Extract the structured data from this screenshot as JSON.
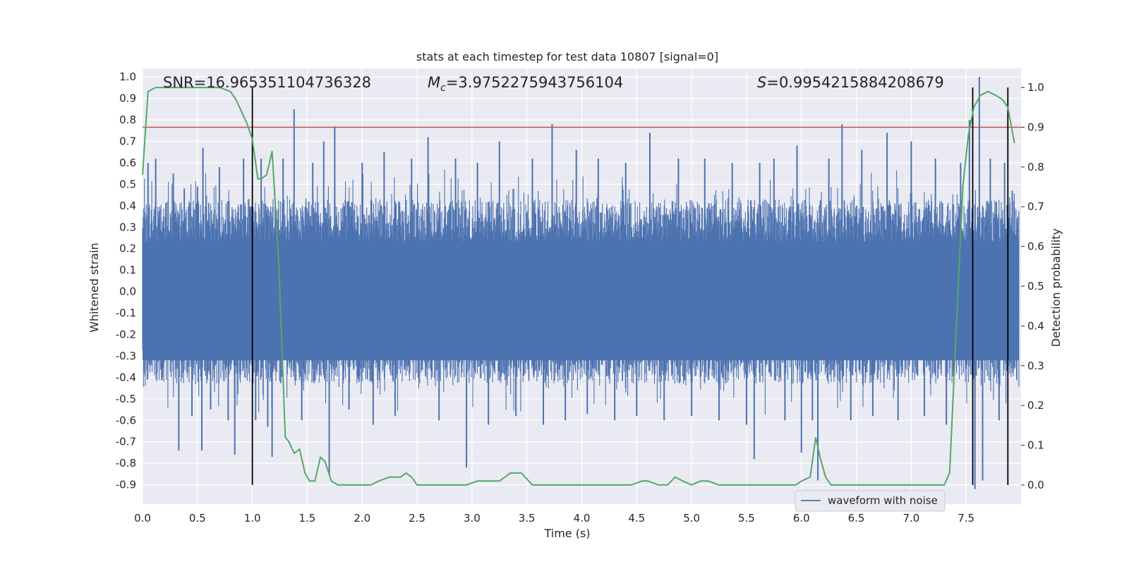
{
  "chart_data": {
    "type": "line",
    "title": "stats at each timestep for test data 10807 [signal=0]",
    "xlabel": "Time (s)",
    "ylabel": "Whitened strain",
    "y2label": "Detection probability",
    "xlim": [
      0.0,
      8.0
    ],
    "ylim": [
      -0.99,
      1.04
    ],
    "y2lim": [
      -0.048,
      1.048
    ],
    "xticks": [
      "0.0",
      "0.5",
      "1.0",
      "1.5",
      "2.0",
      "2.5",
      "3.0",
      "3.5",
      "4.0",
      "4.5",
      "5.0",
      "5.5",
      "6.0",
      "6.5",
      "7.0",
      "7.5"
    ],
    "yticks": [
      "1.0",
      "0.9",
      "0.8",
      "0.7",
      "0.6",
      "0.5",
      "0.4",
      "0.3",
      "0.2",
      "0.1",
      "0.0",
      "-0.1",
      "-0.2",
      "-0.3",
      "-0.4",
      "-0.5",
      "-0.6",
      "-0.7",
      "-0.8",
      "-0.9"
    ],
    "y2ticks": [
      "1.0",
      "0.9",
      "0.8",
      "0.7",
      "0.6",
      "0.5",
      "0.4",
      "0.3",
      "0.2",
      "0.1",
      "0.0"
    ],
    "grid": true,
    "legend_position": "lower-right",
    "annotations": {
      "snr": "SNR=16.965351104736328",
      "mc_symbol": "M",
      "mc_sub": "c",
      "mc_value": "=3.9752275943756104",
      "s_symbol": "S",
      "s_value": "=0.9954215884208679"
    },
    "threshold": {
      "y2": 0.9,
      "color": "#c44e52"
    },
    "vlines": [
      {
        "x": 1.0,
        "y2_from": 0.0,
        "y2_to": 1.0
      },
      {
        "x": 7.56,
        "y2_from": 0.0,
        "y2_to": 1.0
      },
      {
        "x": 7.88,
        "y2_from": 0.0,
        "y2_to": 1.0
      }
    ],
    "series": [
      {
        "name": "waveform with noise",
        "axis": "left",
        "color": "#4c72b0",
        "kind": "noise",
        "band_mean_amplitude": 0.33,
        "spikes": [
          {
            "x": 0.05,
            "y": 0.6
          },
          {
            "x": 0.12,
            "y": 0.62
          },
          {
            "x": 0.18,
            "y": -0.4
          },
          {
            "x": 0.28,
            "y": 0.55
          },
          {
            "x": 0.33,
            "y": -0.74
          },
          {
            "x": 0.38,
            "y": 0.48
          },
          {
            "x": 0.45,
            "y": -0.58
          },
          {
            "x": 0.5,
            "y": 0.49
          },
          {
            "x": 0.54,
            "y": -0.74
          },
          {
            "x": 0.55,
            "y": 0.67
          },
          {
            "x": 0.62,
            "y": -0.55
          },
          {
            "x": 0.7,
            "y": 0.58
          },
          {
            "x": 0.78,
            "y": -0.6
          },
          {
            "x": 0.84,
            "y": -0.76
          },
          {
            "x": 0.92,
            "y": 0.62
          },
          {
            "x": 1.03,
            "y": -0.6
          },
          {
            "x": 1.08,
            "y": 0.62
          },
          {
            "x": 1.14,
            "y": -0.63
          },
          {
            "x": 1.18,
            "y": -0.77
          },
          {
            "x": 1.28,
            "y": 0.62
          },
          {
            "x": 1.38,
            "y": 0.85
          },
          {
            "x": 1.45,
            "y": -0.6
          },
          {
            "x": 1.55,
            "y": 0.6
          },
          {
            "x": 1.65,
            "y": 0.7
          },
          {
            "x": 1.7,
            "y": -0.85
          },
          {
            "x": 1.75,
            "y": 0.77
          },
          {
            "x": 1.88,
            "y": -0.55
          },
          {
            "x": 2.0,
            "y": 0.6
          },
          {
            "x": 2.1,
            "y": -0.62
          },
          {
            "x": 2.2,
            "y": 0.65
          },
          {
            "x": 2.3,
            "y": -0.58
          },
          {
            "x": 2.45,
            "y": 0.62
          },
          {
            "x": 2.6,
            "y": 0.72
          },
          {
            "x": 2.7,
            "y": -0.6
          },
          {
            "x": 2.85,
            "y": 0.62
          },
          {
            "x": 2.95,
            "y": -0.82
          },
          {
            "x": 3.05,
            "y": 0.6
          },
          {
            "x": 3.15,
            "y": -0.62
          },
          {
            "x": 3.25,
            "y": 0.7
          },
          {
            "x": 3.4,
            "y": -0.58
          },
          {
            "x": 3.55,
            "y": 0.62
          },
          {
            "x": 3.65,
            "y": -0.62
          },
          {
            "x": 3.73,
            "y": 0.78
          },
          {
            "x": 3.85,
            "y": -0.6
          },
          {
            "x": 3.95,
            "y": 0.66
          },
          {
            "x": 4.05,
            "y": -0.57
          },
          {
            "x": 4.15,
            "y": 0.62
          },
          {
            "x": 4.3,
            "y": -0.6
          },
          {
            "x": 4.4,
            "y": 0.6
          },
          {
            "x": 4.5,
            "y": -0.58
          },
          {
            "x": 4.62,
            "y": 0.74
          },
          {
            "x": 4.75,
            "y": -0.6
          },
          {
            "x": 4.88,
            "y": 0.62
          },
          {
            "x": 5.0,
            "y": -0.58
          },
          {
            "x": 5.12,
            "y": 0.62
          },
          {
            "x": 5.25,
            "y": -0.6
          },
          {
            "x": 5.37,
            "y": 0.6
          },
          {
            "x": 5.5,
            "y": -0.62
          },
          {
            "x": 5.57,
            "y": -0.78
          },
          {
            "x": 5.62,
            "y": 0.6
          },
          {
            "x": 5.75,
            "y": 0.62
          },
          {
            "x": 5.85,
            "y": -0.6
          },
          {
            "x": 5.96,
            "y": 0.68
          },
          {
            "x": 6.0,
            "y": -0.75
          },
          {
            "x": 6.1,
            "y": -0.6
          },
          {
            "x": 6.15,
            "y": -0.88
          },
          {
            "x": 6.25,
            "y": 0.62
          },
          {
            "x": 6.37,
            "y": 0.78
          },
          {
            "x": 6.45,
            "y": -0.6
          },
          {
            "x": 6.55,
            "y": 0.66
          },
          {
            "x": 6.65,
            "y": -0.58
          },
          {
            "x": 6.78,
            "y": 0.74
          },
          {
            "x": 6.88,
            "y": -0.6
          },
          {
            "x": 7.0,
            "y": 0.7
          },
          {
            "x": 7.12,
            "y": -0.58
          },
          {
            "x": 7.22,
            "y": 0.62
          },
          {
            "x": 7.32,
            "y": -0.62
          },
          {
            "x": 7.45,
            "y": 0.6
          },
          {
            "x": 7.53,
            "y": 0.8
          },
          {
            "x": 7.58,
            "y": -0.92
          },
          {
            "x": 7.62,
            "y": 1.0
          },
          {
            "x": 7.65,
            "y": -0.88
          },
          {
            "x": 7.72,
            "y": 0.62
          },
          {
            "x": 7.8,
            "y": -0.6
          },
          {
            "x": 7.85,
            "y": 0.6
          },
          {
            "x": 7.92,
            "y": 0.47
          }
        ]
      },
      {
        "name": "",
        "axis": "right",
        "color": "#55a868",
        "x": [
          0.0,
          0.05,
          0.12,
          0.2,
          0.3,
          0.4,
          0.5,
          0.6,
          0.7,
          0.8,
          0.85,
          0.9,
          0.95,
          1.0,
          1.05,
          1.08,
          1.13,
          1.18,
          1.24,
          1.3,
          1.33,
          1.38,
          1.43,
          1.48,
          1.52,
          1.57,
          1.62,
          1.66,
          1.72,
          1.78,
          1.85,
          1.93,
          2.0,
          2.08,
          2.15,
          2.25,
          2.35,
          2.4,
          2.45,
          2.5,
          2.58,
          2.65,
          2.75,
          2.85,
          2.95,
          3.05,
          3.15,
          3.25,
          3.35,
          3.45,
          3.55,
          3.65,
          3.75,
          3.85,
          3.95,
          4.05,
          4.15,
          4.25,
          4.35,
          4.45,
          4.55,
          4.6,
          4.7,
          4.78,
          4.85,
          4.92,
          5.0,
          5.08,
          5.15,
          5.25,
          5.35,
          5.45,
          5.55,
          5.65,
          5.75,
          5.85,
          5.95,
          6.0,
          6.08,
          6.13,
          6.17,
          6.22,
          6.27,
          6.32,
          6.4,
          6.5,
          6.6,
          6.7,
          6.8,
          6.9,
          7.0,
          7.1,
          7.2,
          7.3,
          7.35,
          7.42,
          7.47,
          7.52,
          7.57,
          7.63,
          7.7,
          7.77,
          7.83,
          7.88,
          7.94
        ],
        "y": [
          0.78,
          0.99,
          1.0,
          1.0,
          1.0,
          1.0,
          1.0,
          1.0,
          1.0,
          0.99,
          0.97,
          0.94,
          0.91,
          0.87,
          0.77,
          0.77,
          0.78,
          0.84,
          0.56,
          0.12,
          0.11,
          0.08,
          0.09,
          0.03,
          0.01,
          0.01,
          0.07,
          0.06,
          0.01,
          0.0,
          0.0,
          0.0,
          0.0,
          0.0,
          0.01,
          0.02,
          0.02,
          0.03,
          0.02,
          0.0,
          0.0,
          0.0,
          0.0,
          0.0,
          0.0,
          0.01,
          0.01,
          0.01,
          0.03,
          0.03,
          0.0,
          0.0,
          0.0,
          0.0,
          0.0,
          0.0,
          0.0,
          0.0,
          0.0,
          0.0,
          0.01,
          0.01,
          0.0,
          0.0,
          0.02,
          0.01,
          0.0,
          0.01,
          0.01,
          0.0,
          0.0,
          0.0,
          0.0,
          0.0,
          0.0,
          0.0,
          0.0,
          0.01,
          0.02,
          0.12,
          0.07,
          0.02,
          0.0,
          0.0,
          0.0,
          0.0,
          0.0,
          0.0,
          0.0,
          0.0,
          0.0,
          0.0,
          0.0,
          0.0,
          0.03,
          0.45,
          0.75,
          0.88,
          0.95,
          0.98,
          0.99,
          0.98,
          0.97,
          0.95,
          0.86
        ]
      }
    ]
  }
}
